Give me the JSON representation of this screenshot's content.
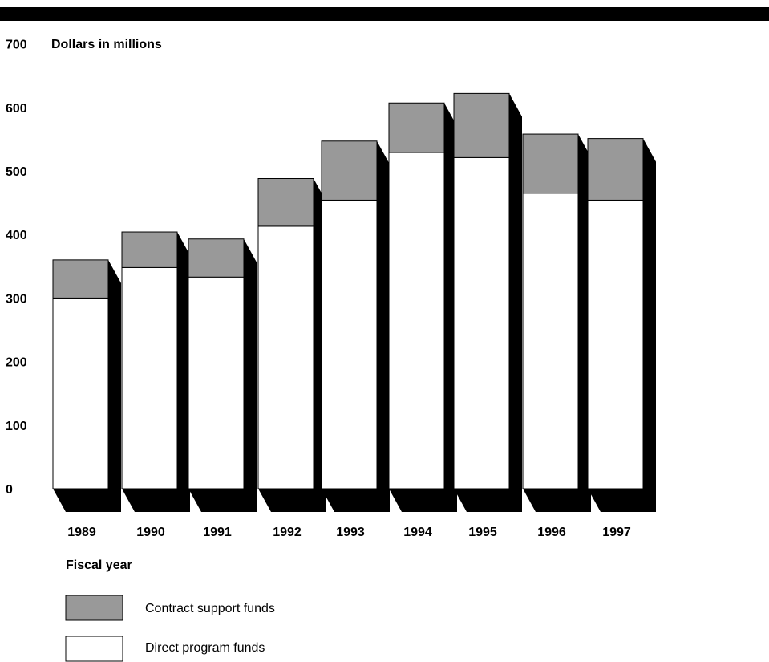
{
  "chart_data": {
    "type": "bar",
    "stacked": true,
    "unit_label": "Dollars in millions",
    "xlabel": "Fiscal year",
    "categories": [
      "1989",
      "1990",
      "1991",
      "1992",
      "1993",
      "1994",
      "1995",
      "1996",
      "1997"
    ],
    "series": [
      {
        "name": "Direct program funds",
        "color": "#ffffff",
        "values": [
          300,
          348,
          333,
          413,
          454,
          529,
          521,
          465,
          454
        ]
      },
      {
        "name": "Contract support funds",
        "color": "#999999",
        "values": [
          60,
          56,
          60,
          75,
          93,
          78,
          101,
          93,
          97
        ]
      }
    ],
    "yticks": [
      "0",
      "100",
      "200",
      "300",
      "400",
      "500",
      "600",
      "700"
    ],
    "ylim": [
      0,
      700
    ],
    "grid": false,
    "legend_position": "bottom-left",
    "shadow_color": "#000000"
  }
}
